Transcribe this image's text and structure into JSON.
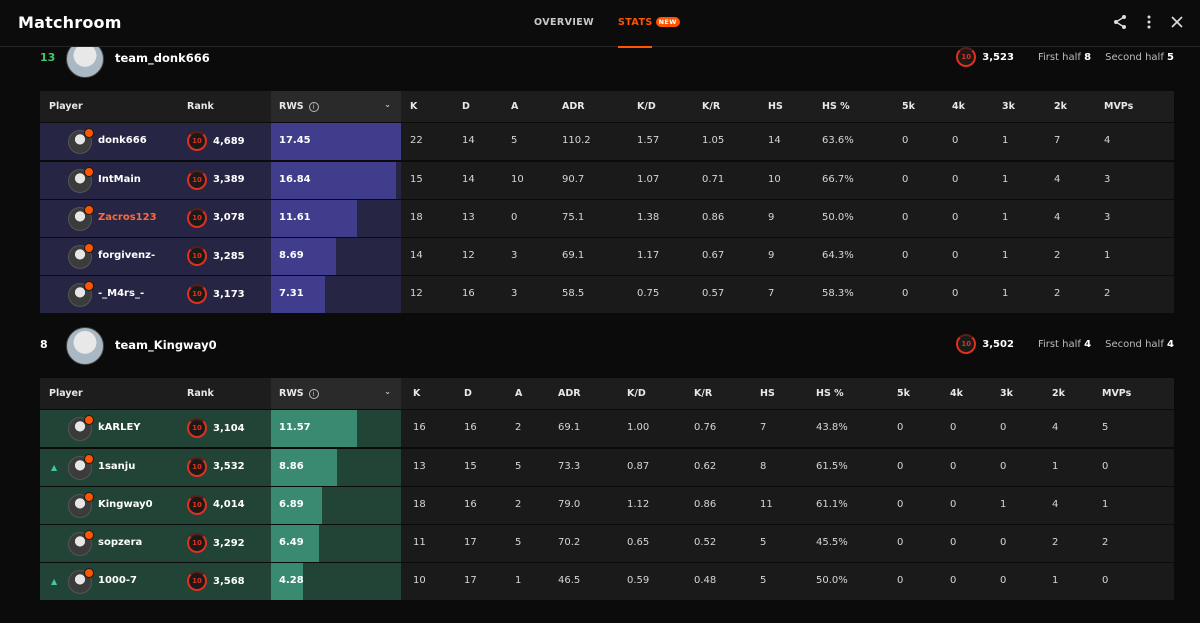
{
  "app": {
    "title": "Matchroom"
  },
  "nav": {
    "tabs": [
      {
        "label": "OVERVIEW"
      },
      {
        "label": "STATS"
      }
    ],
    "badge": "NEW"
  },
  "columns": {
    "player": "Player",
    "rank": "Rank",
    "rws": "RWS",
    "k": "K",
    "d": "D",
    "a": "A",
    "adr": "ADR",
    "kd": "K/D",
    "kr": "K/R",
    "hs": "HS",
    "hsp": "HS %",
    "k5": "5k",
    "k4": "4k",
    "k3": "3k",
    "k2": "2k",
    "mvps": "MVPs"
  },
  "level_badge": "10",
  "teams": [
    {
      "place": "13",
      "name": "team_donk666",
      "elo": "3,523",
      "first_half_label": "First half",
      "first_half": "8",
      "second_half_label": "Second half",
      "second_half": "5",
      "accent": "#3f3d8c",
      "accent_bg": "#262544",
      "place_color": "#3fc86a",
      "players": [
        {
          "name": "donk666",
          "elo": "4,689",
          "rws": "17.45",
          "rws_pct": 1.0,
          "k": "22",
          "d": "14",
          "a": "5",
          "adr": "110.2",
          "kd": "1.57",
          "kr": "1.05",
          "hs": "14",
          "hsp": "63.6%",
          "k5": "0",
          "k4": "0",
          "k3": "1",
          "k2": "7",
          "mvps": "4",
          "highlight": false,
          "arrow": false
        },
        {
          "name": "IntMain",
          "elo": "3,389",
          "rws": "16.84",
          "rws_pct": 0.965,
          "k": "15",
          "d": "14",
          "a": "10",
          "adr": "90.7",
          "kd": "1.07",
          "kr": "0.71",
          "hs": "10",
          "hsp": "66.7%",
          "k5": "0",
          "k4": "0",
          "k3": "1",
          "k2": "4",
          "mvps": "3",
          "highlight": false,
          "arrow": false
        },
        {
          "name": "Zacros123",
          "elo": "3,078",
          "rws": "11.61",
          "rws_pct": 0.665,
          "k": "18",
          "d": "13",
          "a": "0",
          "adr": "75.1",
          "kd": "1.38",
          "kr": "0.86",
          "hs": "9",
          "hsp": "50.0%",
          "k5": "0",
          "k4": "0",
          "k3": "1",
          "k2": "4",
          "mvps": "3",
          "highlight": true,
          "arrow": false
        },
        {
          "name": "forgivenz-",
          "elo": "3,285",
          "rws": "8.69",
          "rws_pct": 0.498,
          "k": "14",
          "d": "12",
          "a": "3",
          "adr": "69.1",
          "kd": "1.17",
          "kr": "0.67",
          "hs": "9",
          "hsp": "64.3%",
          "k5": "0",
          "k4": "0",
          "k3": "1",
          "k2": "2",
          "mvps": "1",
          "highlight": false,
          "arrow": false
        },
        {
          "name": "-_M4rs_-",
          "elo": "3,173",
          "rws": "7.31",
          "rws_pct": 0.419,
          "k": "12",
          "d": "16",
          "a": "3",
          "adr": "58.5",
          "kd": "0.75",
          "kr": "0.57",
          "hs": "7",
          "hsp": "58.3%",
          "k5": "0",
          "k4": "0",
          "k3": "1",
          "k2": "2",
          "mvps": "2",
          "highlight": false,
          "arrow": false
        }
      ]
    },
    {
      "place": "8",
      "name": "team_Kingway0",
      "elo": "3,502",
      "first_half_label": "First half",
      "first_half": "4",
      "second_half_label": "Second half",
      "second_half": "4",
      "accent": "#3a8a72",
      "accent_bg": "#214437",
      "place_color": "#ffffff",
      "players": [
        {
          "name": "kARLEY",
          "elo": "3,104",
          "rws": "11.57",
          "rws_pct": 0.663,
          "k": "16",
          "d": "16",
          "a": "2",
          "adr": "69.1",
          "kd": "1.00",
          "kr": "0.76",
          "hs": "7",
          "hsp": "43.8%",
          "k5": "0",
          "k4": "0",
          "k3": "0",
          "k2": "4",
          "mvps": "5",
          "highlight": false,
          "arrow": false
        },
        {
          "name": "1sanju",
          "elo": "3,532",
          "rws": "8.86",
          "rws_pct": 0.508,
          "k": "13",
          "d": "15",
          "a": "5",
          "adr": "73.3",
          "kd": "0.87",
          "kr": "0.62",
          "hs": "8",
          "hsp": "61.5%",
          "k5": "0",
          "k4": "0",
          "k3": "0",
          "k2": "1",
          "mvps": "0",
          "highlight": false,
          "arrow": true
        },
        {
          "name": "Kingway0",
          "elo": "4,014",
          "rws": "6.89",
          "rws_pct": 0.395,
          "k": "18",
          "d": "16",
          "a": "2",
          "adr": "79.0",
          "kd": "1.12",
          "kr": "0.86",
          "hs": "11",
          "hsp": "61.1%",
          "k5": "0",
          "k4": "0",
          "k3": "1",
          "k2": "4",
          "mvps": "1",
          "highlight": false,
          "arrow": false
        },
        {
          "name": "sopzera",
          "elo": "3,292",
          "rws": "6.49",
          "rws_pct": 0.372,
          "k": "11",
          "d": "17",
          "a": "5",
          "adr": "70.2",
          "kd": "0.65",
          "kr": "0.52",
          "hs": "5",
          "hsp": "45.5%",
          "k5": "0",
          "k4": "0",
          "k3": "0",
          "k2": "2",
          "mvps": "2",
          "highlight": false,
          "arrow": false
        },
        {
          "name": "1000-7",
          "elo": "3,568",
          "rws": "4.28",
          "rws_pct": 0.245,
          "k": "10",
          "d": "17",
          "a": "1",
          "adr": "46.5",
          "kd": "0.59",
          "kr": "0.48",
          "hs": "5",
          "hsp": "50.0%",
          "k5": "0",
          "k4": "0",
          "k3": "0",
          "k2": "1",
          "mvps": "0",
          "highlight": false,
          "arrow": true
        }
      ]
    }
  ],
  "colors": {
    "accent_orange": "#ff5500",
    "name_highlight": "#ff6a3d"
  },
  "icons": {
    "share": "share-icon",
    "more": "more-vertical-icon",
    "close": "close-icon"
  }
}
